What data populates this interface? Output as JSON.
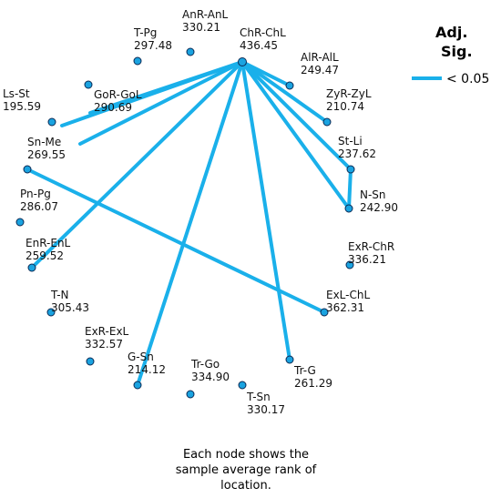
{
  "legend": {
    "title_line1": "Adj.",
    "title_line2": "Sig.",
    "item_label": "< 0.05",
    "line_color": "#1ab0ea"
  },
  "caption": {
    "line1": "Each node shows the",
    "line2": "sample average rank of",
    "line3": "location."
  },
  "colors": {
    "node_fill": "#1aa3e0",
    "node_stroke": "#0a2a55",
    "edge": "#1ab0ea",
    "text": "#111111"
  },
  "nodes": [
    {
      "id": "ChR-ChL",
      "value": "436.45"
    },
    {
      "id": "AnR-AnL",
      "value": "330.21"
    },
    {
      "id": "T-Pg",
      "value": "297.48"
    },
    {
      "id": "AlR-AlL",
      "value": "249.47"
    },
    {
      "id": "GoR-GoL",
      "value": "290.69"
    },
    {
      "id": "ZyR-ZyL",
      "value": "210.74"
    },
    {
      "id": "Ls-St",
      "value": "195.59"
    },
    {
      "id": "Sn-Me",
      "value": "269.55"
    },
    {
      "id": "St-Li",
      "value": "237.62"
    },
    {
      "id": "Pn-Pg",
      "value": "286.07"
    },
    {
      "id": "N-Sn",
      "value": "242.90"
    },
    {
      "id": "ExR-ChR",
      "value": "336.21"
    },
    {
      "id": "EnR-EnL",
      "value": "259.52"
    },
    {
      "id": "ExL-ChL",
      "value": "362.31"
    },
    {
      "id": "T-N",
      "value": "305.43"
    },
    {
      "id": "ExR-ExL",
      "value": "332.57"
    },
    {
      "id": "Tr-G",
      "value": "261.29"
    },
    {
      "id": "G-Sn",
      "value": "214.12"
    },
    {
      "id": "Tr-Go",
      "value": "334.90"
    },
    {
      "id": "T-Sn",
      "value": "330.17"
    }
  ],
  "edges": [
    {
      "from": "ChR-ChL",
      "to": "GoR-GoL"
    },
    {
      "from": "ChR-ChL",
      "to": "Ls-St"
    },
    {
      "from": "ChR-ChL",
      "to": "Sn-Me"
    },
    {
      "from": "ChR-ChL",
      "to": "AlR-AlL"
    },
    {
      "from": "ChR-ChL",
      "to": "ZyR-ZyL"
    },
    {
      "from": "ChR-ChL",
      "to": "St-Li"
    },
    {
      "from": "ChR-ChL",
      "to": "N-Sn"
    },
    {
      "from": "ChR-ChL",
      "to": "EnR-EnL"
    },
    {
      "from": "ChR-ChL",
      "to": "G-Sn"
    },
    {
      "from": "ChR-ChL",
      "to": "Tr-G"
    },
    {
      "from": "St-Li",
      "to": "N-Sn"
    },
    {
      "from": "Sn-Me",
      "to": "ExL-ChL"
    }
  ]
}
